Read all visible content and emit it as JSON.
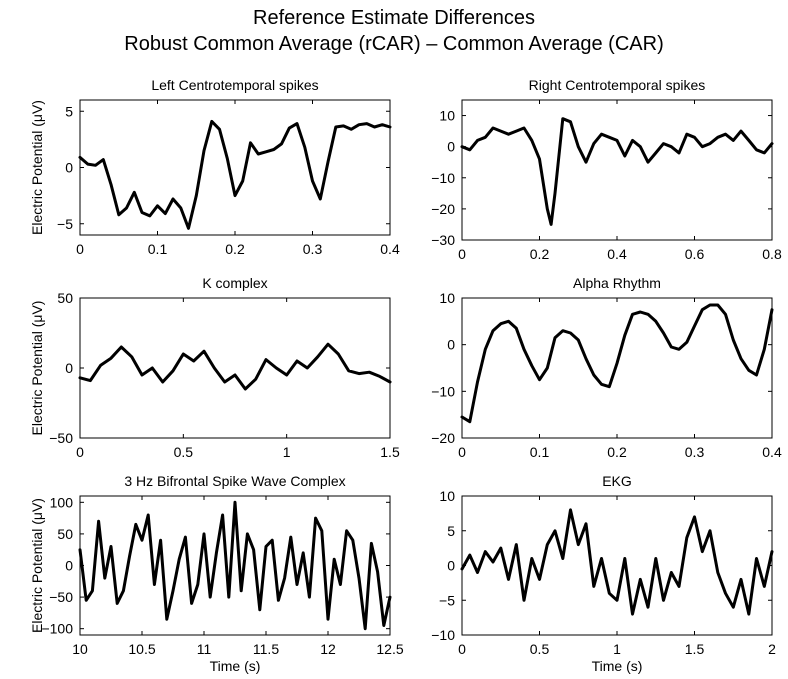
{
  "figure": {
    "title_line1": "Reference Estimate Differences",
    "title_line2": "Robust Common Average (rCAR) – Common Average (CAR)"
  },
  "chart_data": [
    {
      "type": "line",
      "title": "Left Centrotemporal spikes",
      "xlabel": "",
      "ylabel": "Electric Potential (μV)",
      "xlim": [
        0,
        0.4
      ],
      "ylim": [
        -6,
        6
      ],
      "xticks": [
        0,
        0.1,
        0.2,
        0.3,
        0.4
      ],
      "xtick_labels": [
        "0",
        "0.1",
        "0.2",
        "0.3",
        "0.4"
      ],
      "yticks": [
        -5,
        0,
        5
      ],
      "ytick_labels": [
        "−5",
        "0",
        "5"
      ],
      "x": [
        0,
        0.01,
        0.02,
        0.03,
        0.04,
        0.05,
        0.06,
        0.07,
        0.08,
        0.09,
        0.1,
        0.11,
        0.12,
        0.13,
        0.14,
        0.15,
        0.16,
        0.17,
        0.18,
        0.19,
        0.2,
        0.21,
        0.22,
        0.23,
        0.24,
        0.25,
        0.26,
        0.27,
        0.28,
        0.29,
        0.3,
        0.31,
        0.32,
        0.33,
        0.34,
        0.35,
        0.36,
        0.37,
        0.38,
        0.39,
        0.4
      ],
      "y": [
        0.9,
        0.3,
        0.2,
        0.7,
        -1.5,
        -4.2,
        -3.6,
        -2.2,
        -4.0,
        -4.3,
        -3.4,
        -4.1,
        -2.8,
        -3.6,
        -5.4,
        -2.5,
        1.5,
        4.1,
        3.4,
        0.8,
        -2.5,
        -1.2,
        2.2,
        1.2,
        1.4,
        1.6,
        2.1,
        3.5,
        3.9,
        1.8,
        -1.2,
        -2.8,
        0.5,
        3.6,
        3.7,
        3.4,
        3.8,
        3.9,
        3.6,
        3.8,
        3.6
      ]
    },
    {
      "type": "line",
      "title": "Right Centrotemporal spikes",
      "xlabel": "",
      "ylabel": "",
      "xlim": [
        0,
        0.8
      ],
      "ylim": [
        -30,
        15
      ],
      "xticks": [
        0,
        0.2,
        0.4,
        0.6,
        0.8
      ],
      "xtick_labels": [
        "0",
        "0.2",
        "0.4",
        "0.6",
        "0.8"
      ],
      "yticks": [
        -30,
        -20,
        -10,
        0,
        10
      ],
      "ytick_labels": [
        "−30",
        "−20",
        "−10",
        "0",
        "10"
      ],
      "x": [
        0,
        0.02,
        0.04,
        0.06,
        0.08,
        0.1,
        0.12,
        0.14,
        0.16,
        0.18,
        0.2,
        0.22,
        0.23,
        0.24,
        0.26,
        0.28,
        0.3,
        0.32,
        0.34,
        0.36,
        0.38,
        0.4,
        0.42,
        0.44,
        0.46,
        0.48,
        0.5,
        0.52,
        0.54,
        0.56,
        0.58,
        0.6,
        0.62,
        0.64,
        0.66,
        0.68,
        0.7,
        0.72,
        0.74,
        0.76,
        0.78,
        0.8
      ],
      "y": [
        0,
        -1,
        2,
        3,
        6,
        5,
        4,
        5,
        6,
        2,
        -4,
        -20,
        -25,
        -15,
        9,
        8,
        0,
        -5,
        1,
        4,
        3,
        2,
        -3,
        2,
        0,
        -5,
        -2,
        1,
        0,
        -2,
        4,
        3,
        0,
        1,
        3,
        4,
        2,
        5,
        2,
        -1,
        -2,
        1
      ]
    },
    {
      "type": "line",
      "title": "K complex",
      "xlabel": "",
      "ylabel": "Electric Potential (μV)",
      "xlim": [
        0,
        1.5
      ],
      "ylim": [
        -50,
        50
      ],
      "xticks": [
        0,
        0.5,
        1,
        1.5
      ],
      "xtick_labels": [
        "0",
        "0.5",
        "1",
        "1.5"
      ],
      "yticks": [
        -50,
        0,
        50
      ],
      "ytick_labels": [
        "−50",
        "0",
        "50"
      ],
      "x": [
        0,
        0.05,
        0.1,
        0.15,
        0.2,
        0.25,
        0.3,
        0.35,
        0.4,
        0.45,
        0.5,
        0.55,
        0.6,
        0.65,
        0.7,
        0.75,
        0.8,
        0.85,
        0.9,
        0.95,
        1.0,
        1.05,
        1.1,
        1.15,
        1.2,
        1.25,
        1.3,
        1.35,
        1.4,
        1.45,
        1.5
      ],
      "y": [
        -7,
        -9,
        2,
        7,
        15,
        8,
        -5,
        0,
        -10,
        -2,
        10,
        5,
        12,
        0,
        -10,
        -5,
        -15,
        -8,
        6,
        0,
        -5,
        5,
        0,
        8,
        17,
        10,
        -2,
        -4,
        -3,
        -6,
        -10
      ]
    },
    {
      "type": "line",
      "title": "Alpha Rhythm",
      "xlabel": "",
      "ylabel": "",
      "xlim": [
        0,
        0.4
      ],
      "ylim": [
        -20,
        10
      ],
      "xticks": [
        0,
        0.1,
        0.2,
        0.3,
        0.4
      ],
      "xtick_labels": [
        "0",
        "0.1",
        "0.2",
        "0.3",
        "0.4"
      ],
      "yticks": [
        -20,
        -10,
        0,
        10
      ],
      "ytick_labels": [
        "−20",
        "−10",
        "0",
        "10"
      ],
      "x": [
        0,
        0.01,
        0.02,
        0.03,
        0.04,
        0.05,
        0.06,
        0.07,
        0.08,
        0.09,
        0.1,
        0.11,
        0.12,
        0.13,
        0.14,
        0.15,
        0.16,
        0.17,
        0.18,
        0.19,
        0.2,
        0.21,
        0.22,
        0.23,
        0.24,
        0.25,
        0.26,
        0.27,
        0.28,
        0.29,
        0.3,
        0.31,
        0.32,
        0.33,
        0.34,
        0.35,
        0.36,
        0.37,
        0.38,
        0.39,
        0.4
      ],
      "y": [
        -15.5,
        -16.5,
        -8,
        -1,
        3,
        4.5,
        5,
        3.5,
        -1,
        -4.5,
        -7.5,
        -5,
        1.5,
        3,
        2.5,
        1,
        -3,
        -6.5,
        -8.5,
        -9,
        -4,
        2,
        6.5,
        7,
        6.5,
        5,
        2.5,
        -0.5,
        -1,
        0.5,
        4,
        7.5,
        8.5,
        8.5,
        6.5,
        1,
        -3,
        -5.5,
        -6.5,
        -1,
        7.5
      ]
    },
    {
      "type": "line",
      "title": "3 Hz Bifrontal Spike Wave Complex",
      "xlabel": "Time (s)",
      "ylabel": "Electric Potential (μV)",
      "xlim": [
        10,
        12.5
      ],
      "ylim": [
        -110,
        110
      ],
      "xticks": [
        10,
        10.5,
        11,
        11.5,
        12,
        12.5
      ],
      "xtick_labels": [
        "10",
        "10.5",
        "11",
        "11.5",
        "12",
        "12.5"
      ],
      "yticks": [
        -100,
        -50,
        0,
        50,
        100
      ],
      "ytick_labels": [
        "−100",
        "−50",
        "0",
        "50",
        "100"
      ],
      "x": [
        10.0,
        10.05,
        10.1,
        10.15,
        10.2,
        10.25,
        10.3,
        10.35,
        10.4,
        10.45,
        10.5,
        10.55,
        10.6,
        10.65,
        10.7,
        10.75,
        10.8,
        10.85,
        10.9,
        10.95,
        11.0,
        11.05,
        11.1,
        11.15,
        11.2,
        11.25,
        11.3,
        11.35,
        11.4,
        11.45,
        11.5,
        11.55,
        11.6,
        11.65,
        11.7,
        11.75,
        11.8,
        11.85,
        11.9,
        11.95,
        12.0,
        12.05,
        12.1,
        12.15,
        12.2,
        12.25,
        12.3,
        12.35,
        12.4,
        12.45,
        12.5
      ],
      "y": [
        25,
        -55,
        -40,
        70,
        -20,
        30,
        -60,
        -40,
        15,
        65,
        40,
        80,
        -30,
        40,
        -85,
        -40,
        10,
        45,
        -60,
        -30,
        50,
        -50,
        20,
        80,
        -50,
        100,
        -40,
        50,
        25,
        -70,
        30,
        40,
        -55,
        -20,
        45,
        -30,
        20,
        -50,
        75,
        55,
        -85,
        10,
        -30,
        55,
        40,
        -20,
        -100,
        35,
        -10,
        -95,
        -50
      ]
    },
    {
      "type": "line",
      "title": "EKG",
      "xlabel": "Time (s)",
      "ylabel": "",
      "xlim": [
        0,
        2
      ],
      "ylim": [
        -10,
        10
      ],
      "xticks": [
        0,
        0.5,
        1,
        1.5,
        2
      ],
      "xtick_labels": [
        "0",
        "0.5",
        "1",
        "1.5",
        "2"
      ],
      "yticks": [
        -10,
        -5,
        0,
        5,
        10
      ],
      "ytick_labels": [
        "−10",
        "−5",
        "0",
        "5",
        "10"
      ],
      "x": [
        0,
        0.05,
        0.1,
        0.15,
        0.2,
        0.25,
        0.3,
        0.35,
        0.4,
        0.45,
        0.5,
        0.55,
        0.6,
        0.65,
        0.7,
        0.75,
        0.8,
        0.85,
        0.9,
        0.95,
        1.0,
        1.05,
        1.1,
        1.15,
        1.2,
        1.25,
        1.3,
        1.35,
        1.4,
        1.45,
        1.5,
        1.55,
        1.6,
        1.65,
        1.7,
        1.75,
        1.8,
        1.85,
        1.9,
        1.95,
        2.0
      ],
      "y": [
        -0.5,
        1.5,
        -1,
        2,
        0.5,
        2.5,
        -2,
        3,
        -5,
        1,
        -2,
        3,
        5,
        1,
        8,
        3,
        6,
        -3,
        1,
        -4,
        -5,
        1,
        -7,
        -2,
        -6,
        1,
        -5,
        -1,
        -3,
        4,
        7,
        2,
        5,
        -1,
        -4,
        -6,
        -2,
        -7,
        1,
        -3,
        2
      ]
    }
  ]
}
